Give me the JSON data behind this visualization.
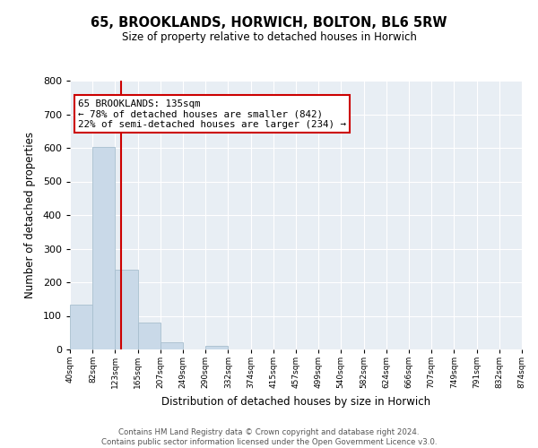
{
  "title": "65, BROOKLANDS, HORWICH, BOLTON, BL6 5RW",
  "subtitle": "Size of property relative to detached houses in Horwich",
  "xlabel": "Distribution of detached houses by size in Horwich",
  "ylabel": "Number of detached properties",
  "bin_edges": [
    40,
    82,
    123,
    165,
    207,
    249,
    290,
    332,
    374,
    415,
    457,
    499,
    540,
    582,
    624,
    666,
    707,
    749,
    791,
    832,
    874
  ],
  "bin_labels": [
    "40sqm",
    "82sqm",
    "123sqm",
    "165sqm",
    "207sqm",
    "249sqm",
    "290sqm",
    "332sqm",
    "374sqm",
    "415sqm",
    "457sqm",
    "499sqm",
    "540sqm",
    "582sqm",
    "624sqm",
    "666sqm",
    "707sqm",
    "749sqm",
    "791sqm",
    "832sqm",
    "874sqm"
  ],
  "counts": [
    133,
    603,
    237,
    79,
    22,
    0,
    10,
    0,
    0,
    0,
    0,
    0,
    0,
    0,
    0,
    0,
    0,
    0,
    0,
    0
  ],
  "bar_color": "#c9d9e8",
  "bar_edge_color": "#a8bfcf",
  "property_line_x": 135,
  "vline_color": "#cc0000",
  "annotation_text": "65 BROOKLANDS: 135sqm\n← 78% of detached houses are smaller (842)\n22% of semi-detached houses are larger (234) →",
  "annotation_box_facecolor": "#ffffff",
  "annotation_box_edgecolor": "#cc0000",
  "ylim": [
    0,
    800
  ],
  "yticks": [
    0,
    100,
    200,
    300,
    400,
    500,
    600,
    700,
    800
  ],
  "background_color": "#e8eef4",
  "grid_color": "#ffffff",
  "footer_line1": "Contains HM Land Registry data © Crown copyright and database right 2024.",
  "footer_line2": "Contains public sector information licensed under the Open Government Licence v3.0."
}
